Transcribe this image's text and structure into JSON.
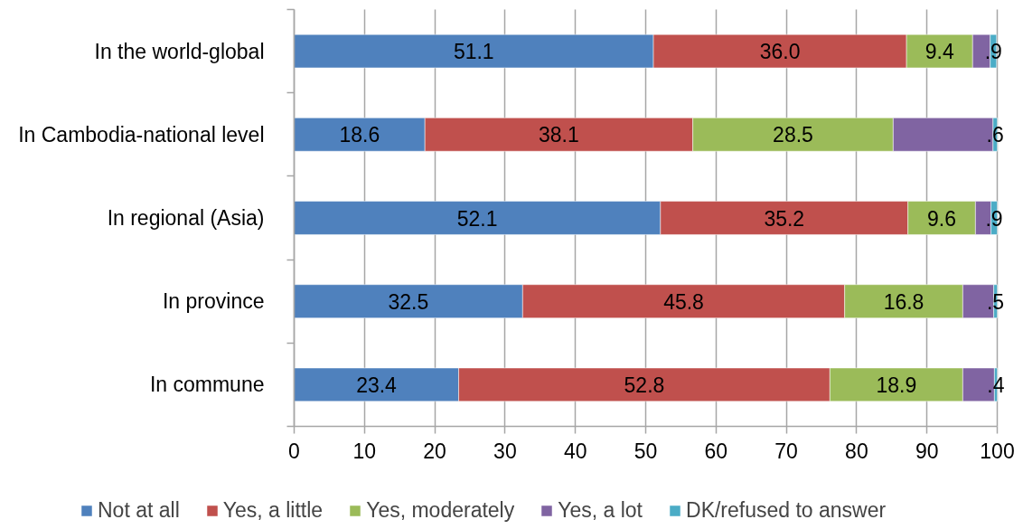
{
  "chart_data": {
    "type": "bar",
    "orientation": "horizontal",
    "stacked": true,
    "categories": [
      "In the world-global",
      "In Cambodia-national level",
      "In regional (Asia)",
      "In province",
      "In commune"
    ],
    "series": [
      {
        "name": "Not at all",
        "color": "#4f81bd",
        "values": [
          51.1,
          18.6,
          52.1,
          32.5,
          23.4
        ],
        "value_labels": [
          "51.1",
          "18.6",
          "52.1",
          "32.5",
          "23.4"
        ]
      },
      {
        "name": "Yes, a little",
        "color": "#c0504d",
        "values": [
          36.0,
          38.1,
          35.2,
          45.8,
          52.8
        ],
        "value_labels": [
          "36.0",
          "38.1",
          "35.2",
          "45.8",
          "52.8"
        ]
      },
      {
        "name": "Yes, moderately",
        "color": "#9bbb59",
        "values": [
          9.4,
          28.5,
          9.6,
          16.8,
          18.9
        ],
        "value_labels": [
          "9.4",
          "28.5",
          "9.6",
          "16.8",
          "18.9"
        ]
      },
      {
        "name": "Yes, a lot",
        "color": "#8064a2",
        "values": [
          2.5,
          14.2,
          2.2,
          4.4,
          4.5
        ]
      },
      {
        "name": "DK/refused to answer",
        "color": "#4bacc6",
        "values": [
          0.9,
          0.6,
          0.9,
          0.5,
          0.4
        ],
        "value_labels": [
          ".9",
          ".6",
          ".9",
          ".5",
          ".4"
        ]
      }
    ],
    "xlim": [
      0,
      100
    ],
    "xticks": [
      0,
      10,
      20,
      30,
      40,
      50,
      60,
      70,
      80,
      90,
      100
    ],
    "grid": "x",
    "legend": "bottom"
  }
}
